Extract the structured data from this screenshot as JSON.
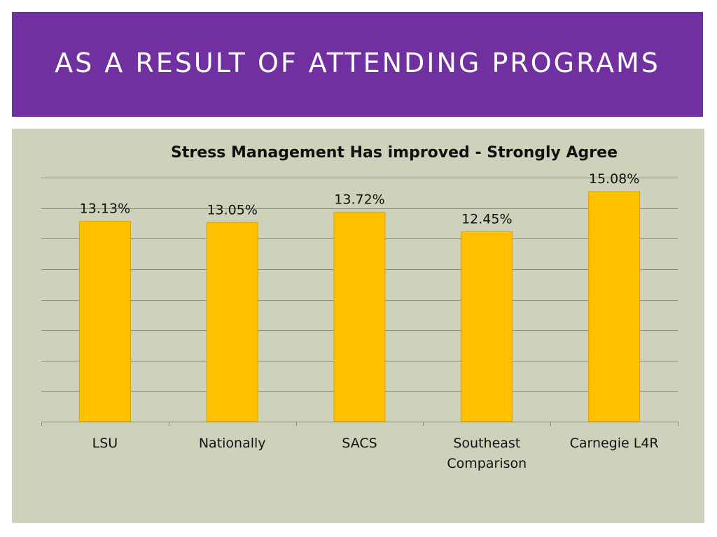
{
  "slide": {
    "title": "As a result of attending programs"
  },
  "colors": {
    "title_band": "#7030a0",
    "chart_background": "#cfd2ba",
    "bar_fill": "#ffc000",
    "bar_stroke": "#d9a400",
    "gridline": "#8a8a7a"
  },
  "chart_data": {
    "type": "bar",
    "title": "Stress Management Has improved - Strongly Agree",
    "categories": [
      [
        "LSU"
      ],
      [
        "Nationally"
      ],
      [
        "SACS"
      ],
      [
        "Southeast",
        "Comparison"
      ],
      [
        "Carnegie L4R"
      ]
    ],
    "values": [
      13.13,
      13.05,
      13.72,
      12.45,
      15.08
    ],
    "data_labels": [
      "13.13%",
      "13.05%",
      "13.72%",
      "12.45%",
      "15.08%"
    ],
    "ylim": [
      0,
      16
    ],
    "y_gridline_step": 2,
    "grid": true,
    "y_tick_labels_shown": false,
    "legend": "none"
  }
}
